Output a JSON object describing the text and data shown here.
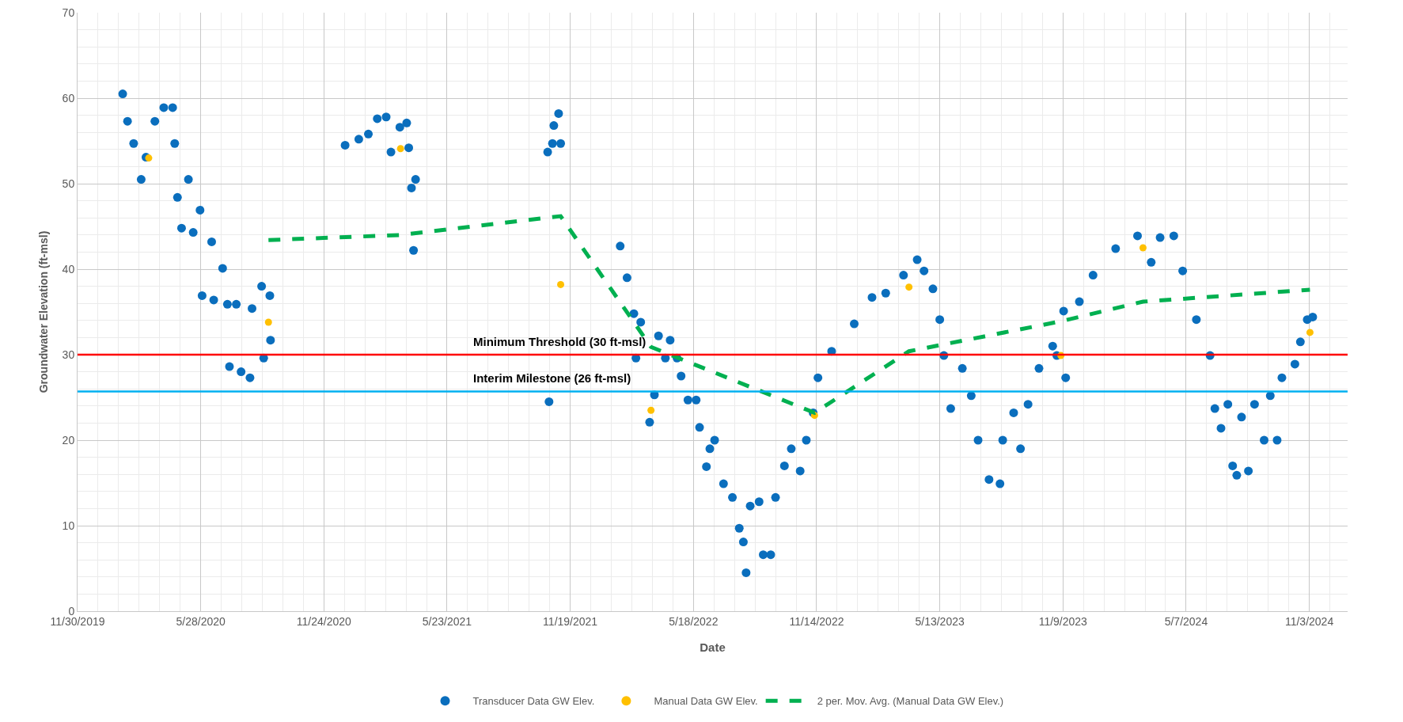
{
  "chart_data": {
    "type": "scatter",
    "xlabel": "Date",
    "ylabel": "Groundwater Elevation (ft-msl)",
    "xlim": [
      "2019-11-30",
      "2024-12-29"
    ],
    "ylim": [
      0,
      70
    ],
    "xticks": [
      {
        "value": "2019-11-30",
        "label": "11/30/2019"
      },
      {
        "value": "2020-05-28",
        "label": "5/28/2020"
      },
      {
        "value": "2020-11-24",
        "label": "11/24/2020"
      },
      {
        "value": "2021-05-23",
        "label": "5/23/2021"
      },
      {
        "value": "2021-11-19",
        "label": "11/19/2021"
      },
      {
        "value": "2022-05-18",
        "label": "5/18/2022"
      },
      {
        "value": "2022-11-14",
        "label": "11/14/2022"
      },
      {
        "value": "2023-05-13",
        "label": "5/13/2023"
      },
      {
        "value": "2023-11-09",
        "label": "11/9/2023"
      },
      {
        "value": "2024-05-07",
        "label": "5/7/2024"
      },
      {
        "value": "2024-11-03",
        "label": "11/3/2024"
      }
    ],
    "yticks": [
      0,
      10,
      20,
      30,
      40,
      50,
      60,
      70
    ],
    "grid": true,
    "legend": "bottom",
    "ref_lines": [
      {
        "axis": "y",
        "value": 30,
        "label": "Minimum Threshold (30 ft-msl)",
        "color": "#ff0000",
        "line_style": "solid"
      },
      {
        "axis": "y",
        "value": 25.7,
        "label": "Interim Milestone (26 ft-msl)",
        "color": "#00b0f0",
        "line_style": "solid"
      }
    ],
    "series": [
      {
        "name": "Transducer Data GW Elev.",
        "marker": "circle",
        "color": "#0a6ebd",
        "x": [
          "2020-02-04",
          "2020-02-11",
          "2020-02-20",
          "2020-03-02",
          "2020-03-09",
          "2020-03-22",
          "2020-04-04",
          "2020-04-17",
          "2020-04-20",
          "2020-04-24",
          "2020-04-30",
          "2020-05-10",
          "2020-05-17",
          "2020-05-27",
          "2020-05-30",
          "2020-06-13",
          "2020-06-16",
          "2020-06-29",
          "2020-07-06",
          "2020-07-09",
          "2020-07-19",
          "2020-07-26",
          "2020-08-08",
          "2020-08-11",
          "2020-08-25",
          "2020-08-28",
          "2020-09-06",
          "2020-09-07",
          "2020-12-25",
          "2021-01-14",
          "2021-01-28",
          "2021-02-10",
          "2021-02-23",
          "2021-03-02",
          "2021-03-15",
          "2021-03-25",
          "2021-03-28",
          "2021-04-01",
          "2021-04-04",
          "2021-04-07",
          "2021-10-17",
          "2021-10-19",
          "2021-10-24",
          "2021-10-26",
          "2021-11-02",
          "2021-11-05",
          "2022-01-31",
          "2022-02-10",
          "2022-02-20",
          "2022-02-23",
          "2022-03-02",
          "2022-03-15",
          "2022-03-22",
          "2022-03-28",
          "2022-04-07",
          "2022-04-14",
          "2022-04-24",
          "2022-04-30",
          "2022-05-10",
          "2022-05-22",
          "2022-05-27",
          "2022-06-06",
          "2022-06-11",
          "2022-06-18",
          "2022-07-01",
          "2022-07-14",
          "2022-07-24",
          "2022-07-30",
          "2022-08-03",
          "2022-08-09",
          "2022-08-22",
          "2022-08-28",
          "2022-09-08",
          "2022-09-15",
          "2022-09-28",
          "2022-10-08",
          "2022-10-21",
          "2022-10-30",
          "2022-11-09",
          "2022-11-16",
          "2022-12-06",
          "2023-01-08",
          "2023-02-03",
          "2023-02-23",
          "2023-03-21",
          "2023-04-10",
          "2023-04-20",
          "2023-05-03",
          "2023-05-13",
          "2023-05-19",
          "2023-05-29",
          "2023-06-15",
          "2023-06-28",
          "2023-07-08",
          "2023-07-24",
          "2023-08-09",
          "2023-08-13",
          "2023-08-29",
          "2023-09-08",
          "2023-09-19",
          "2023-10-05",
          "2023-10-25",
          "2023-10-31",
          "2023-11-10",
          "2023-11-13",
          "2023-12-03",
          "2023-12-23",
          "2024-01-25",
          "2024-02-26",
          "2024-03-17",
          "2024-03-30",
          "2024-04-19",
          "2024-05-02",
          "2024-05-22",
          "2024-06-11",
          "2024-06-18",
          "2024-06-27",
          "2024-07-07",
          "2024-07-14",
          "2024-07-20",
          "2024-07-27",
          "2024-08-06",
          "2024-08-15",
          "2024-08-29",
          "2024-09-07",
          "2024-09-17",
          "2024-09-24",
          "2024-10-13",
          "2024-10-21",
          "2024-10-31",
          "2024-11-08"
        ],
        "values": [
          60.5,
          57.3,
          54.7,
          50.5,
          53.1,
          57.3,
          58.9,
          58.9,
          54.7,
          48.4,
          44.8,
          50.5,
          44.3,
          46.9,
          36.9,
          43.2,
          36.4,
          40.1,
          35.9,
          28.6,
          35.9,
          28,
          27.3,
          35.4,
          38,
          29.6,
          36.9,
          31.7,
          54.5,
          55.2,
          55.8,
          57.6,
          57.8,
          53.7,
          56.6,
          57.1,
          54.2,
          49.5,
          42.2,
          50.5,
          53.7,
          24.5,
          54.7,
          56.8,
          58.2,
          54.7,
          42.7,
          39,
          34.8,
          29.6,
          33.8,
          22.1,
          25.3,
          32.2,
          29.6,
          31.7,
          29.6,
          27.5,
          24.7,
          24.7,
          21.5,
          16.9,
          19,
          20,
          14.9,
          13.3,
          9.7,
          8.1,
          4.5,
          12.3,
          12.8,
          6.6,
          6.6,
          13.3,
          17,
          19,
          16.4,
          20,
          23.2,
          27.3,
          30.4,
          33.6,
          36.7,
          37.2,
          39.3,
          41.1,
          39.8,
          37.7,
          34.1,
          29.9,
          23.7,
          28.4,
          25.2,
          20,
          15.4,
          14.9,
          20,
          23.2,
          19,
          24.2,
          28.4,
          31,
          29.9,
          35.1,
          27.3,
          36.2,
          39.3,
          42.4,
          43.9,
          40.8,
          43.7,
          43.9,
          39.8,
          34.1,
          29.9,
          23.7,
          21.4,
          24.2,
          17,
          15.9,
          22.7,
          16.4,
          24.2,
          20,
          25.2,
          20,
          27.3,
          28.9,
          31.5,
          34.1,
          34.4
        ]
      },
      {
        "name": "Manual Data GW Elev.",
        "marker": "circle",
        "color": "#ffc000",
        "x": [
          "2020-03-13",
          "2020-09-04",
          "2021-03-16",
          "2021-11-05",
          "2022-03-17",
          "2022-11-11",
          "2023-03-29",
          "2023-11-06",
          "2024-03-05",
          "2024-11-04"
        ],
        "values": [
          53,
          33.8,
          54.1,
          38.2,
          23.5,
          22.9,
          37.9,
          29.9,
          42.5,
          32.6
        ]
      },
      {
        "name": "2 per. Mov. Avg. (Manual Data GW Elev.)",
        "type": "line",
        "marker": "none",
        "line_style": "dashed",
        "color": "#00b050",
        "x": [
          "2020-09-04",
          "2021-03-16",
          "2021-11-05",
          "2022-03-17",
          "2022-11-11",
          "2023-03-29",
          "2023-11-06",
          "2024-03-05",
          "2024-11-04"
        ],
        "values": [
          43.4,
          44,
          46.2,
          30.9,
          23.2,
          30.4,
          33.9,
          36.2,
          37.6
        ]
      }
    ]
  }
}
